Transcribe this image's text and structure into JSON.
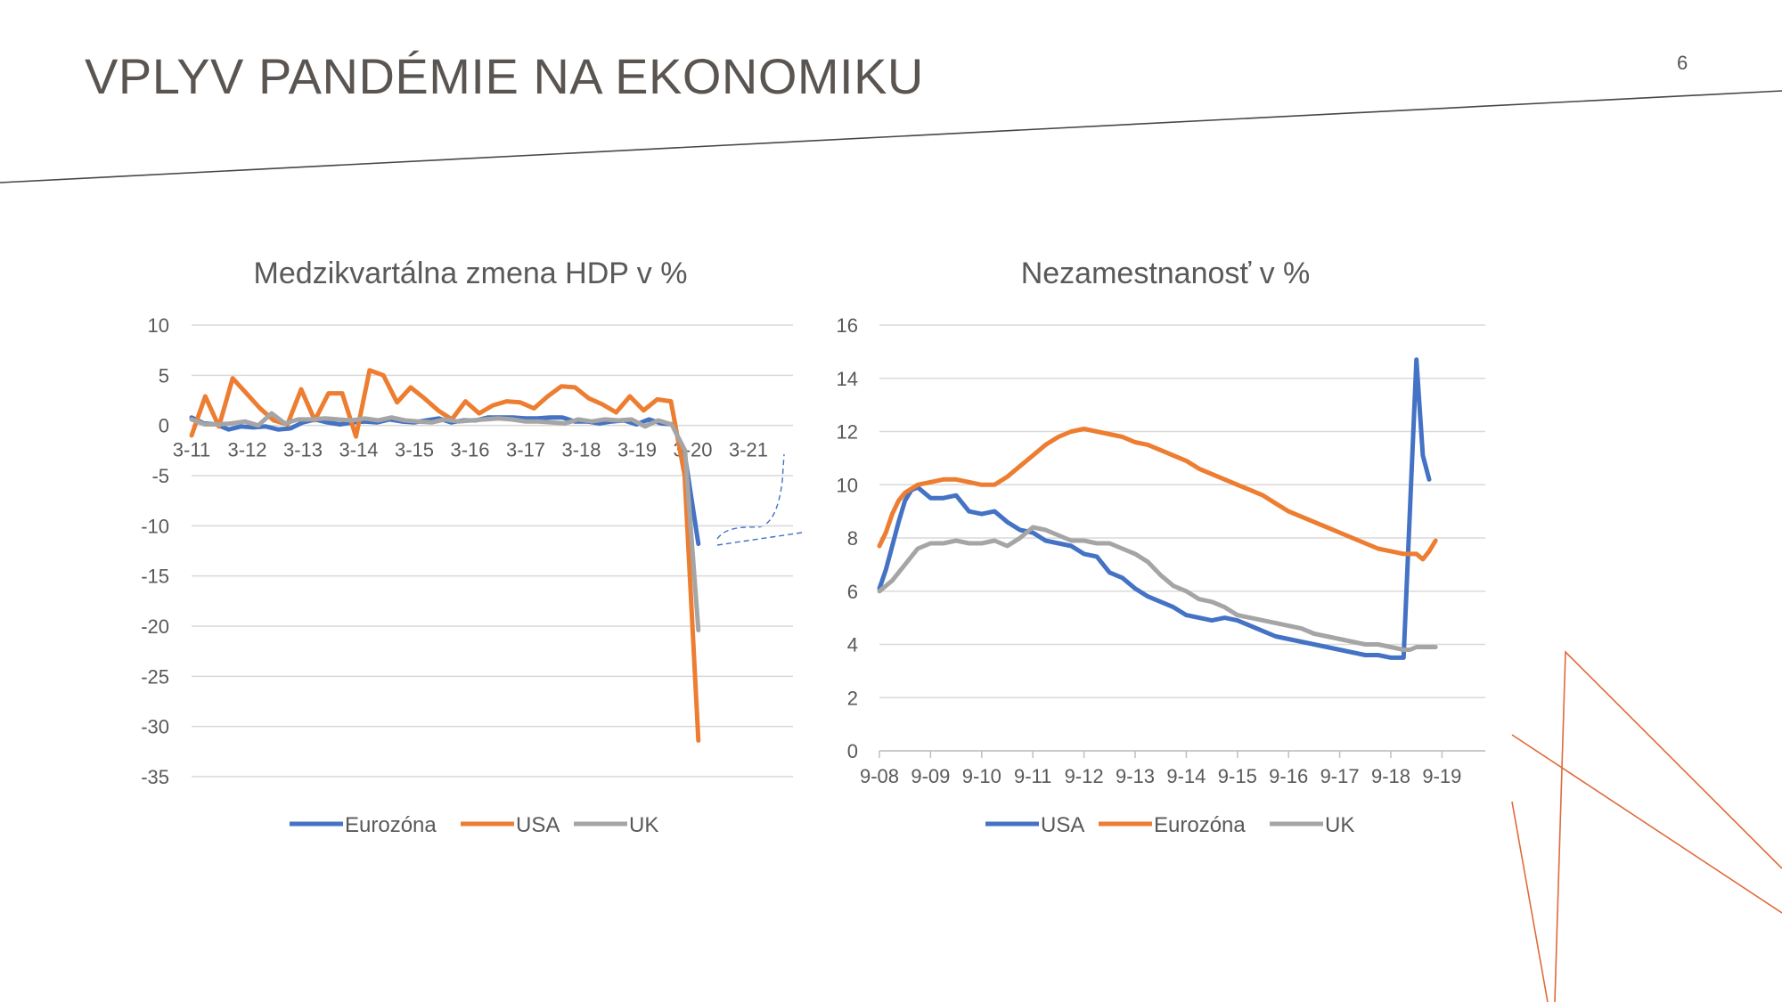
{
  "slide": {
    "title": "VPLYV PANDÉMIE NA EKONOMIKU",
    "page_number": "6",
    "colors": {
      "title": "#5a5550",
      "divider": "#4a4540",
      "accent_lines": "#e06a3b"
    }
  },
  "chart_data": [
    {
      "type": "line",
      "title": "Medzikvartálna zmena HDP v %",
      "xlabel": "",
      "ylabel": "",
      "ylim": [
        -35,
        10
      ],
      "yticks": [
        10,
        5,
        0,
        -5,
        -10,
        -15,
        -20,
        -25,
        -30,
        -35
      ],
      "xtick_labels": [
        "3-11",
        "3-12",
        "3-13",
        "3-14",
        "3-15",
        "3-16",
        "3-17",
        "3-18",
        "3-19",
        "3-20",
        "3-21"
      ],
      "grid": true,
      "legend_position": "bottom",
      "series": [
        {
          "name": "Eurozóna",
          "color": "#4472c4",
          "values": [
            0.8,
            0.2,
            0.1,
            -0.4,
            -0.1,
            -0.2,
            -0.1,
            -0.4,
            -0.3,
            0.3,
            0.6,
            0.3,
            0.1,
            0.3,
            0.4,
            0.3,
            0.6,
            0.4,
            0.3,
            0.5,
            0.7,
            0.3,
            0.5,
            0.5,
            0.8,
            0.8,
            0.8,
            0.7,
            0.7,
            0.8,
            0.8,
            0.4,
            0.4,
            0.2,
            0.4,
            0.5,
            0.1,
            0.6,
            0.2,
            0.1,
            -3.7,
            -11.8
          ]
        },
        {
          "name": "USA",
          "color": "#ed7d31",
          "values": [
            -1.0,
            2.9,
            -0.1,
            4.7,
            3.2,
            1.7,
            0.5,
            0.1,
            3.6,
            0.5,
            3.2,
            3.2,
            -1.1,
            5.5,
            5.0,
            2.3,
            3.8,
            2.7,
            1.5,
            0.6,
            2.4,
            1.2,
            2.0,
            2.4,
            2.3,
            1.7,
            2.9,
            3.9,
            3.8,
            2.7,
            2.1,
            1.3,
            2.9,
            1.5,
            2.6,
            2.4,
            -5.0,
            -31.4
          ]
        },
        {
          "name": "UK",
          "color": "#a5a5a5",
          "values": [
            0.6,
            0.1,
            0.1,
            0.2,
            0.4,
            0.0,
            1.2,
            0.2,
            0.6,
            0.6,
            0.7,
            0.6,
            0.5,
            0.7,
            0.5,
            0.8,
            0.5,
            0.4,
            0.3,
            0.6,
            0.4,
            0.5,
            0.6,
            0.7,
            0.6,
            0.4,
            0.4,
            0.3,
            0.2,
            0.6,
            0.4,
            0.6,
            0.5,
            0.6,
            -0.1,
            0.5,
            0.1,
            -2.5,
            -20.4
          ]
        }
      ]
    },
    {
      "type": "line",
      "title": "Nezamestnanosť v %",
      "xlabel": "",
      "ylabel": "",
      "ylim": [
        0,
        16
      ],
      "yticks": [
        16,
        14,
        12,
        10,
        8,
        6,
        4,
        2,
        0
      ],
      "xtick_labels": [
        "9-08",
        "9-09",
        "9-10",
        "9-11",
        "9-12",
        "9-13",
        "9-14",
        "9-15",
        "9-16",
        "9-17",
        "9-18",
        "9-19"
      ],
      "grid": true,
      "legend_position": "bottom",
      "series": [
        {
          "name": "USA",
          "color": "#4472c4",
          "values": [
            6.1,
            6.8,
            7.7,
            8.6,
            9.4,
            9.8,
            9.9,
            9.5,
            9.5,
            9.6,
            9.0,
            8.9,
            9.0,
            8.6,
            8.3,
            8.2,
            7.9,
            7.8,
            7.7,
            7.4,
            7.3,
            6.7,
            6.5,
            6.1,
            5.8,
            5.6,
            5.4,
            5.1,
            5.0,
            4.9,
            5.0,
            4.9,
            4.7,
            4.5,
            4.3,
            4.2,
            4.1,
            4.0,
            3.9,
            3.8,
            3.7,
            3.6,
            3.6,
            3.5,
            3.5,
            14.7,
            11.1,
            10.2
          ],
          "x_index": [
            0,
            1,
            2,
            3,
            4,
            5,
            6,
            8,
            10,
            12,
            14,
            16,
            18,
            20,
            22,
            24,
            26,
            28,
            30,
            32,
            34,
            36,
            38,
            40,
            42,
            44,
            46,
            48,
            50,
            52,
            54,
            56,
            58,
            60,
            62,
            64,
            66,
            68,
            70,
            72,
            74,
            76,
            78,
            80,
            82,
            84,
            85,
            86
          ]
        },
        {
          "name": "Eurozóna",
          "color": "#ed7d31",
          "values": [
            7.7,
            8.2,
            8.9,
            9.4,
            9.7,
            10.0,
            10.1,
            10.2,
            10.2,
            10.1,
            10.0,
            10.0,
            10.3,
            10.7,
            11.1,
            11.5,
            11.8,
            12.0,
            12.1,
            12.0,
            11.9,
            11.8,
            11.6,
            11.5,
            11.3,
            11.1,
            10.9,
            10.6,
            10.4,
            10.2,
            10.0,
            9.8,
            9.6,
            9.3,
            9.0,
            8.8,
            8.6,
            8.4,
            8.2,
            8.0,
            7.8,
            7.6,
            7.5,
            7.4,
            7.4,
            7.2,
            7.5,
            7.9
          ],
          "x_index": [
            0,
            1,
            2,
            3,
            4,
            6,
            8,
            10,
            12,
            14,
            16,
            18,
            20,
            22,
            24,
            26,
            28,
            30,
            32,
            34,
            36,
            38,
            40,
            42,
            44,
            46,
            48,
            50,
            52,
            54,
            56,
            58,
            60,
            62,
            64,
            66,
            68,
            70,
            72,
            74,
            76,
            78,
            80,
            82,
            84,
            85,
            86,
            87
          ]
        },
        {
          "name": "UK",
          "color": "#a5a5a5",
          "values": [
            6.0,
            6.4,
            7.0,
            7.6,
            7.8,
            7.8,
            7.9,
            7.8,
            7.8,
            7.9,
            7.7,
            8.0,
            8.4,
            8.3,
            8.1,
            7.9,
            7.9,
            7.8,
            7.8,
            7.6,
            7.4,
            7.1,
            6.6,
            6.2,
            6.0,
            5.7,
            5.6,
            5.4,
            5.1,
            5.0,
            4.9,
            4.8,
            4.7,
            4.6,
            4.4,
            4.3,
            4.2,
            4.1,
            4.0,
            4.0,
            3.9,
            3.8,
            3.8,
            3.9,
            3.9,
            3.9,
            3.9
          ],
          "x_index": [
            0,
            2,
            4,
            6,
            8,
            10,
            12,
            14,
            16,
            18,
            20,
            22,
            24,
            26,
            28,
            30,
            32,
            34,
            36,
            38,
            40,
            42,
            44,
            46,
            48,
            50,
            52,
            54,
            56,
            58,
            60,
            62,
            64,
            66,
            68,
            70,
            72,
            74,
            76,
            78,
            80,
            82,
            83,
            84,
            85,
            86,
            87
          ]
        }
      ]
    }
  ]
}
